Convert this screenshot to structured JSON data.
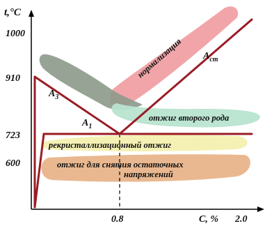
{
  "axes": {
    "y_label": "t,°C",
    "x_label": "C, %",
    "y_ticks": [
      "1000",
      "910",
      "723",
      "600"
    ],
    "x_ticks": [
      "0.8",
      "2.0"
    ]
  },
  "lines": {
    "a3": "A",
    "a3_sub": "3",
    "a1": "A",
    "a1_sub": "1",
    "acm": "A",
    "acm_sub": "cm"
  },
  "zones": {
    "normalization": "нормализация",
    "second_anneal": "отжиг второго рода",
    "recrystallization": "рекристаллизационный отжиг",
    "stress_relief_1": "отжиг для снятия остаточных",
    "stress_relief_2": "напряжений"
  },
  "colors": {
    "normalization": "#f0a0a4",
    "second_anneal": "#b8e4d0",
    "recrystallization": "#f4f0b0",
    "stress_relief": "#e8b48a",
    "gray_band": "#8c9a8a",
    "phase_line": "#9a1c24"
  }
}
